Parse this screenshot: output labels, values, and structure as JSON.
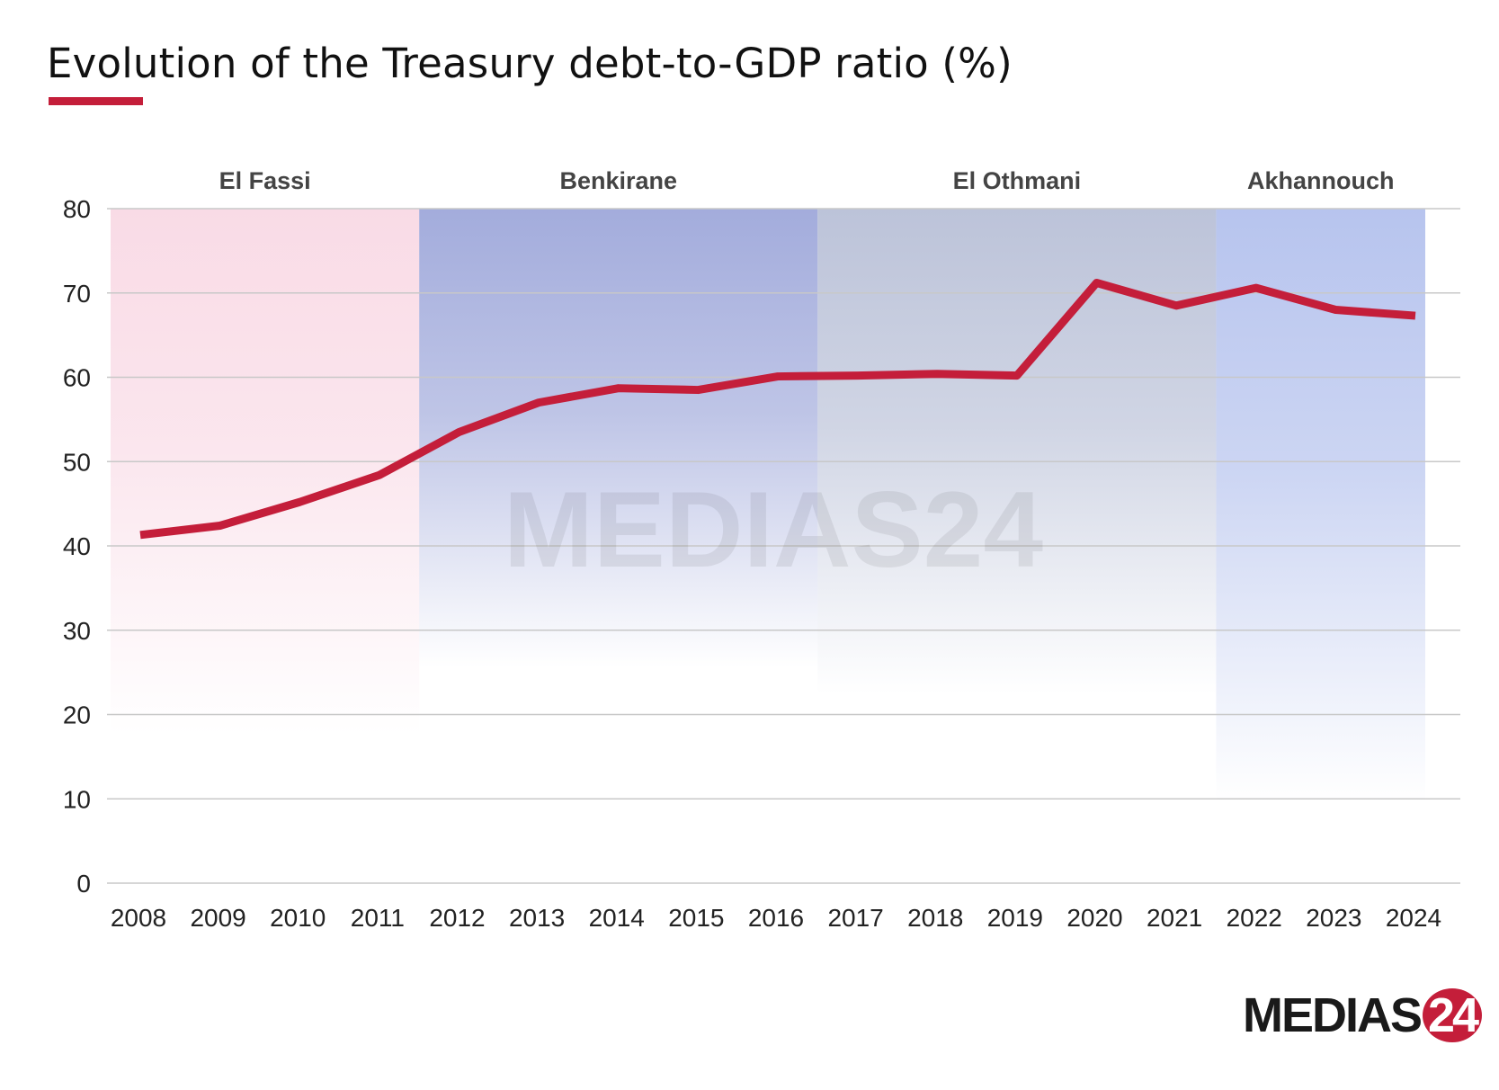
{
  "chart_data": {
    "type": "line",
    "title": "Evolution of the Treasury debt-to-GDP ratio (%)",
    "xlabel": "",
    "ylabel": "",
    "ylim": [
      0,
      80
    ],
    "yticks": [
      "0",
      "10",
      "20",
      "30",
      "40",
      "50",
      "60",
      "70",
      "80"
    ],
    "grid": true,
    "categories": [
      "2008",
      "2009",
      "2010",
      "2011",
      "2012",
      "2013",
      "2014",
      "2015",
      "2016",
      "2017",
      "2018",
      "2019",
      "2020",
      "2021",
      "2022",
      "2023",
      "2024"
    ],
    "series": [
      {
        "values": [
          41.3,
          42.4,
          45.2,
          48.4,
          53.5,
          57.0,
          58.7,
          58.5,
          60.1,
          60.2,
          60.4,
          60.2,
          71.2,
          68.5,
          70.6,
          68.0,
          67.3
        ],
        "color": "#c41e3a"
      }
    ],
    "periods": [
      {
        "label": "El Fassi",
        "from": "2008",
        "to": "2011",
        "color": "#f9dbe6"
      },
      {
        "label": "Benkirane",
        "from": "2012",
        "to": "2016",
        "color": "#a3acdc"
      },
      {
        "label": "El Othmani",
        "from": "2017",
        "to": "2021",
        "color": "#bcc3d9"
      },
      {
        "label": "Akhannouch",
        "from": "2022",
        "to": "2024",
        "color": "#b7c4ee"
      }
    ]
  },
  "watermark": "MEDIAS24",
  "logo": {
    "text": "MEDIAS",
    "number": "24"
  }
}
